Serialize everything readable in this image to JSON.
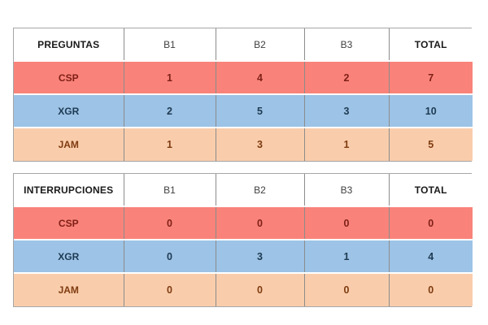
{
  "colors": {
    "red_fill": "#f9837a",
    "blue_fill": "#9dc3e6",
    "peach_fill": "#f9cdac",
    "red_text": "#7e1f17",
    "blue_text": "#1e3a52",
    "peach_text": "#7f3b10",
    "header_text": "#1a1a1a",
    "header_sub_text": "#3f3f3f",
    "cell_border": "#8c8c8c",
    "outer_border": "#a6a6a6",
    "background": "#ffffff"
  },
  "tables": [
    {
      "headers": [
        "PREGUNTAS",
        "B1",
        "B2",
        "B3",
        "TOTAL"
      ],
      "rows": [
        {
          "label": "CSP",
          "theme": "red",
          "values": [
            "1",
            "4",
            "2"
          ],
          "total": "7"
        },
        {
          "label": "XGR",
          "theme": "blue",
          "values": [
            "2",
            "5",
            "3"
          ],
          "total": "10"
        },
        {
          "label": "JAM",
          "theme": "peach",
          "values": [
            "1",
            "3",
            "1"
          ],
          "total": "5"
        }
      ]
    },
    {
      "headers": [
        "INTERRUPCIONES",
        "B1",
        "B2",
        "B3",
        "TOTAL"
      ],
      "rows": [
        {
          "label": "CSP",
          "theme": "red",
          "values": [
            "0",
            "0",
            "0"
          ],
          "total": "0"
        },
        {
          "label": "XGR",
          "theme": "blue",
          "values": [
            "0",
            "3",
            "1"
          ],
          "total": "4"
        },
        {
          "label": "JAM",
          "theme": "peach",
          "values": [
            "0",
            "0",
            "0"
          ],
          "total": "0"
        }
      ]
    }
  ],
  "chart_data": [
    {
      "type": "table",
      "title": "PREGUNTAS",
      "columns": [
        "PREGUNTAS",
        "B1",
        "B2",
        "B3",
        "TOTAL"
      ],
      "rows": [
        [
          "CSP",
          1,
          4,
          2,
          7
        ],
        [
          "XGR",
          2,
          5,
          3,
          10
        ],
        [
          "JAM",
          1,
          3,
          1,
          5
        ]
      ]
    },
    {
      "type": "table",
      "title": "INTERRUPCIONES",
      "columns": [
        "INTERRUPCIONES",
        "B1",
        "B2",
        "B3",
        "TOTAL"
      ],
      "rows": [
        [
          "CSP",
          0,
          0,
          0,
          0
        ],
        [
          "XGR",
          0,
          3,
          1,
          4
        ],
        [
          "JAM",
          0,
          0,
          0,
          0
        ]
      ]
    }
  ]
}
